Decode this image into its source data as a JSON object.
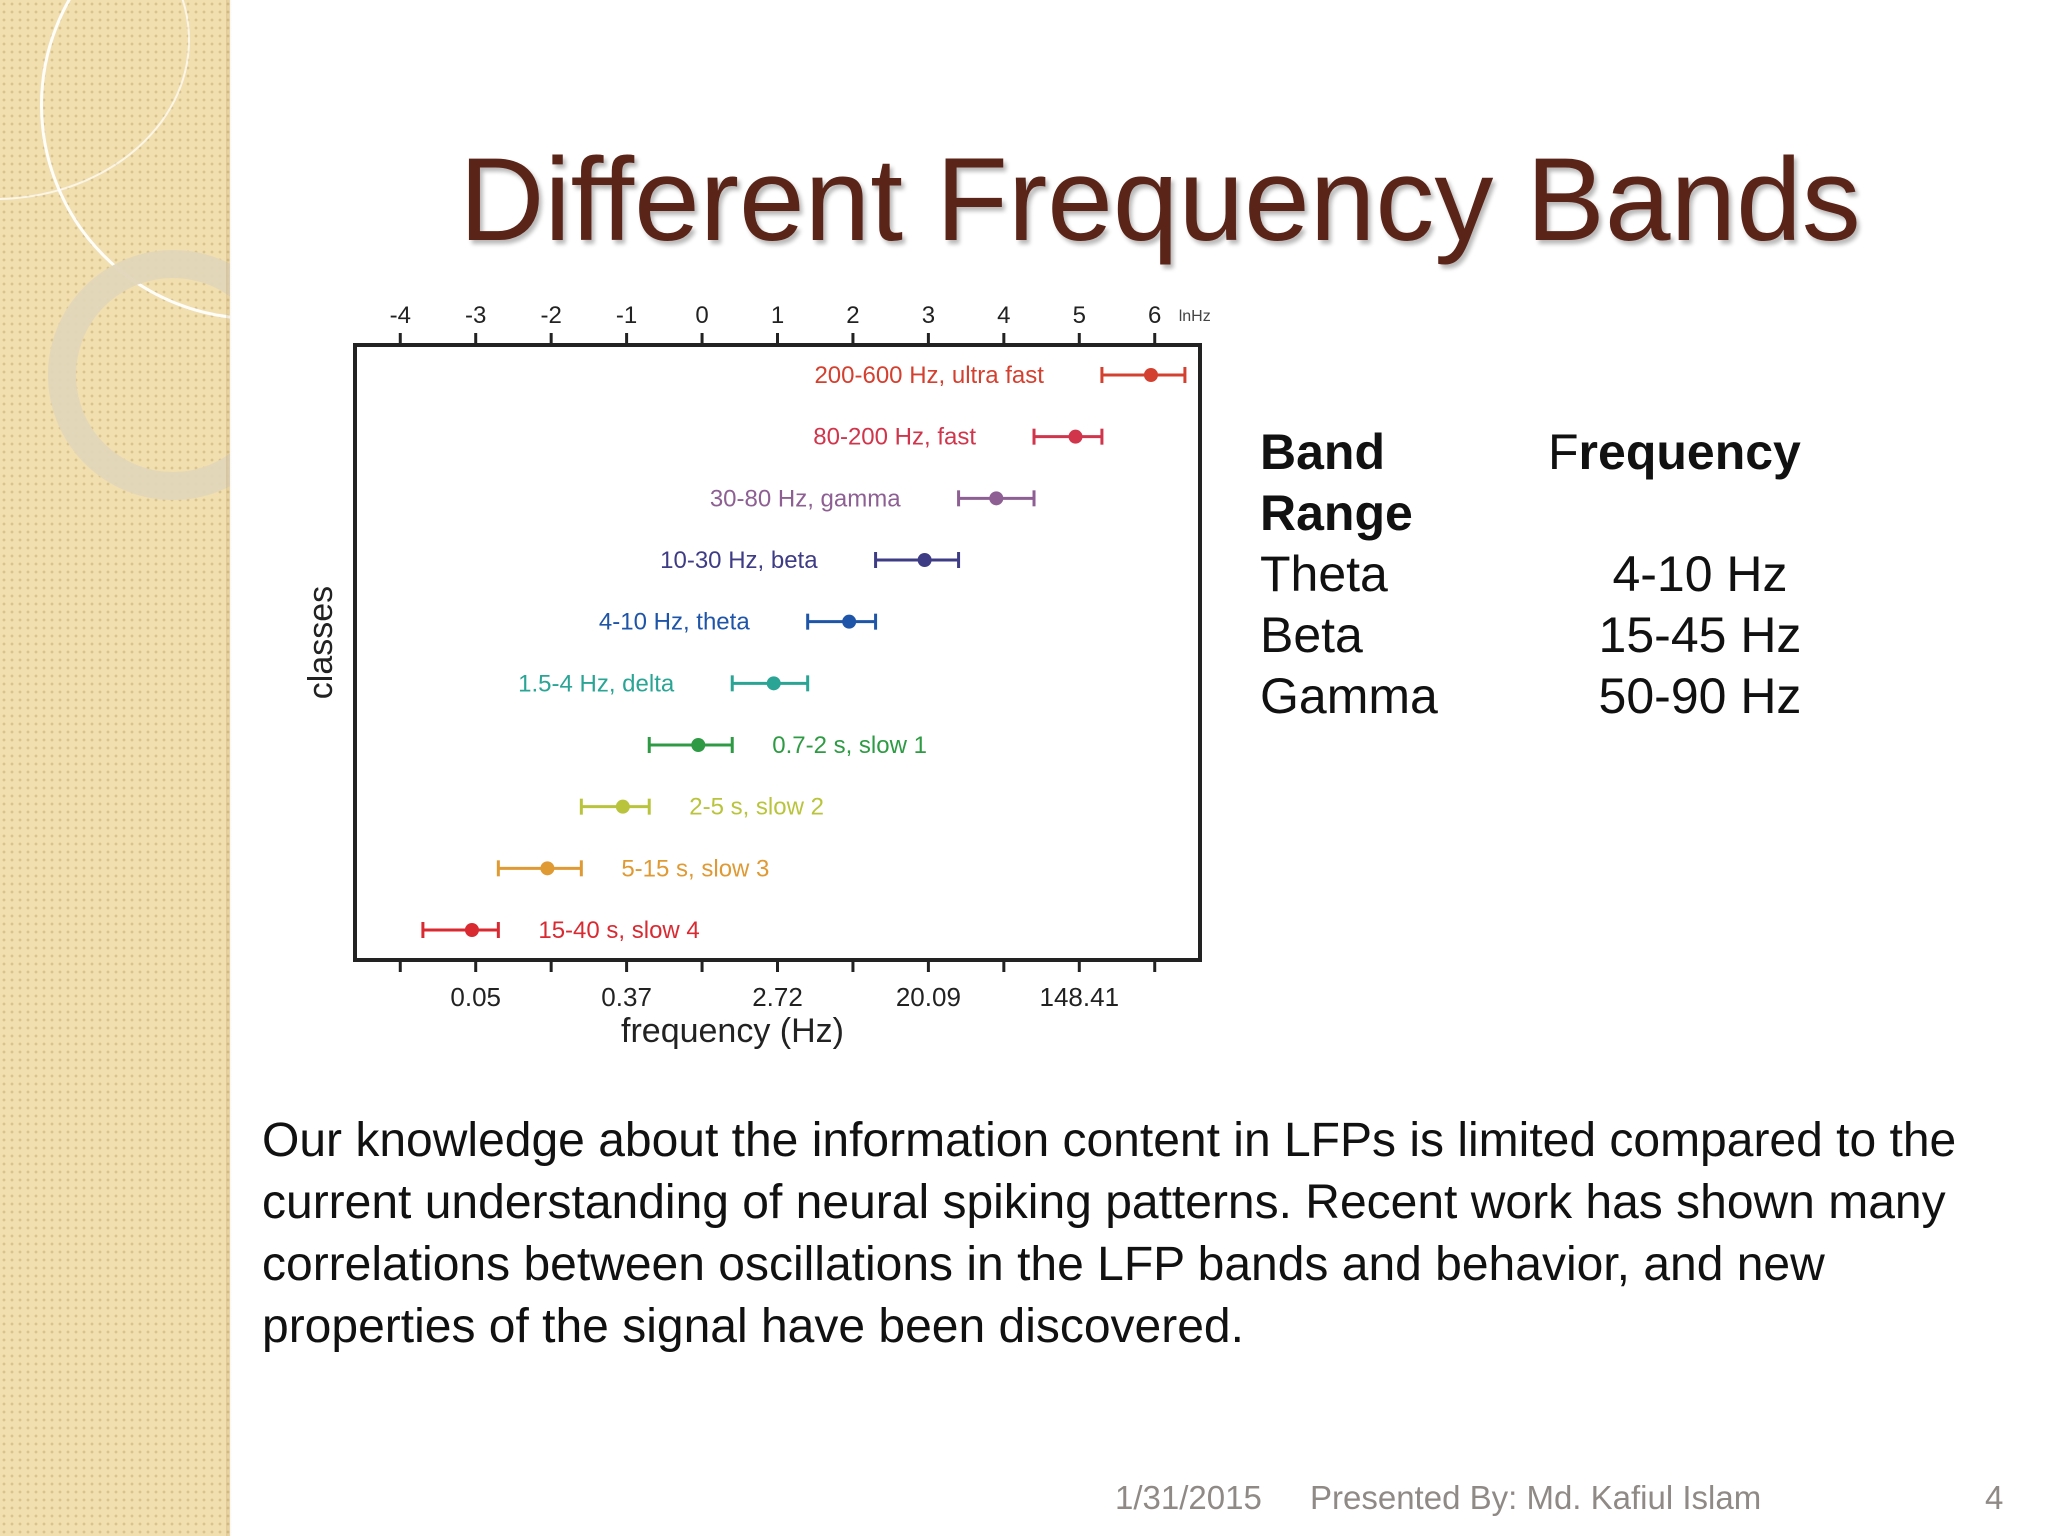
{
  "slide": {
    "title": "Different Frequency Bands",
    "band_table": {
      "header": {
        "band_line1": "Band",
        "band_line2": "Range",
        "frequency_first": "F",
        "frequency_rest": "requency"
      },
      "rows": [
        {
          "band": "Theta",
          "frequency": "4-10 Hz"
        },
        {
          "band": "Beta",
          "frequency": "15-45 Hz"
        },
        {
          "band": "Gamma",
          "frequency": "50-90 Hz"
        }
      ]
    },
    "description": "Our knowledge about the information content in LFPs is limited compared to the current understanding of neural spiking patterns. Recent work has shown many correlations between oscillations in the LFP bands and behavior, and new properties of the signal have been discovered.",
    "footer": {
      "date": "1/31/2015",
      "presenter": "Presented By: Md. Kafiul Islam",
      "page": "4"
    }
  },
  "chart_data": {
    "type": "scatter",
    "ylabel": "classes",
    "xlabel": "frequency (Hz)",
    "top_axis": {
      "label": "lnHz",
      "range": [
        -4.6,
        6.6
      ],
      "ticks": [
        -4,
        -3,
        -2,
        -1,
        0,
        1,
        2,
        3,
        4,
        5,
        6
      ]
    },
    "bottom_ticks": [
      {
        "ln": -3,
        "label": "0.05"
      },
      {
        "ln": -1,
        "label": "0.37"
      },
      {
        "ln": 1,
        "label": "2.72"
      },
      {
        "ln": 3,
        "label": "20.09"
      },
      {
        "ln": 5,
        "label": "148.41"
      }
    ],
    "bottom_minor_ticks": [
      -4,
      -2,
      0,
      2,
      4,
      6
    ],
    "classes": [
      {
        "label": "200-600 Hz, ultra fast",
        "center": 5.95,
        "low": 5.3,
        "high": 6.4,
        "color": "#d4402f",
        "label_side": "left"
      },
      {
        "label": "80-200 Hz, fast",
        "center": 4.95,
        "low": 4.4,
        "high": 5.3,
        "color": "#d1354b",
        "label_side": "left"
      },
      {
        "label": "30-80 Hz, gamma",
        "center": 3.9,
        "low": 3.4,
        "high": 4.4,
        "color": "#8d5f93",
        "label_side": "left"
      },
      {
        "label": "10-30 Hz, beta",
        "center": 2.95,
        "low": 2.3,
        "high": 3.4,
        "color": "#3f3c86",
        "label_side": "left"
      },
      {
        "label": "4-10 Hz, theta",
        "center": 1.95,
        "low": 1.4,
        "high": 2.3,
        "color": "#1f55a8",
        "label_side": "left"
      },
      {
        "label": "1.5-4 Hz, delta",
        "center": 0.95,
        "low": 0.4,
        "high": 1.4,
        "color": "#2aa595",
        "label_side": "left"
      },
      {
        "label": "0.7-2 s, slow 1",
        "center": -0.05,
        "low": -0.7,
        "high": 0.4,
        "color": "#2e9b44",
        "label_side": "right"
      },
      {
        "label": "2-5 s, slow 2",
        "center": -1.05,
        "low": -1.6,
        "high": -0.7,
        "color": "#b9c43c",
        "label_side": "right"
      },
      {
        "label": "5-15 s, slow 3",
        "center": -2.05,
        "low": -2.7,
        "high": -1.6,
        "color": "#df9a34",
        "label_side": "right"
      },
      {
        "label": "15-40 s, slow 4",
        "center": -3.05,
        "low": -3.7,
        "high": -2.7,
        "color": "#d92a32",
        "label_side": "right"
      }
    ]
  }
}
